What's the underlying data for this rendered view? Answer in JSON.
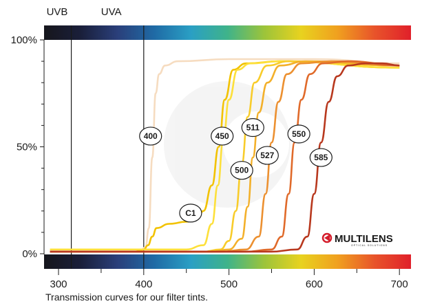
{
  "chart_data": {
    "type": "line",
    "xlim": [
      290,
      700
    ],
    "ylim": [
      0,
      100
    ],
    "x_ticks": [
      300,
      400,
      500,
      600,
      700
    ],
    "y_ticks": [
      {
        "value": 100,
        "label": "100%"
      },
      {
        "value": 50,
        "label": "50%"
      },
      {
        "value": 0,
        "label": "0%"
      }
    ],
    "bands": [
      {
        "label": "UVB",
        "x": 315
      },
      {
        "label": "UVA",
        "x": 400
      }
    ],
    "spectrum_colors": [
      "#16161c",
      "#1a1f3a",
      "#2a3f7a",
      "#1f6aa5",
      "#2a9fc4",
      "#3fb38a",
      "#9cc43a",
      "#e8d21f",
      "#f0a01f",
      "#e8542a",
      "#e0202a"
    ],
    "series": [
      {
        "name": "400",
        "color": "#f6dcc0",
        "label_at": [
          408,
          55
        ],
        "points": [
          [
            290,
            1
          ],
          [
            395,
            1
          ],
          [
            402,
            3
          ],
          [
            406,
            12
          ],
          [
            410,
            45
          ],
          [
            414,
            75
          ],
          [
            418,
            84
          ],
          [
            425,
            88
          ],
          [
            440,
            90
          ],
          [
            500,
            91
          ],
          [
            600,
            91
          ],
          [
            700,
            89
          ]
        ]
      },
      {
        "name": "C1",
        "color": "#f2c200",
        "label_at": [
          455,
          19
        ],
        "points": [
          [
            290,
            1
          ],
          [
            390,
            1
          ],
          [
            400,
            2
          ],
          [
            405,
            4
          ],
          [
            410,
            8
          ],
          [
            415,
            12
          ],
          [
            430,
            14
          ],
          [
            450,
            15
          ],
          [
            462,
            16
          ],
          [
            470,
            20
          ],
          [
            480,
            32
          ],
          [
            488,
            50
          ],
          [
            495,
            72
          ],
          [
            505,
            86
          ],
          [
            520,
            89
          ],
          [
            560,
            90
          ],
          [
            700,
            87
          ]
        ]
      },
      {
        "name": "450",
        "color": "#fde03a",
        "label_at": [
          492,
          55
        ],
        "points": [
          [
            290,
            2
          ],
          [
            420,
            2
          ],
          [
            450,
            2
          ],
          [
            470,
            4
          ],
          [
            480,
            14
          ],
          [
            487,
            32
          ],
          [
            493,
            52
          ],
          [
            500,
            72
          ],
          [
            510,
            86
          ],
          [
            525,
            89
          ],
          [
            560,
            90
          ],
          [
            700,
            87
          ]
        ]
      },
      {
        "name": "500",
        "color": "#f8cc2a",
        "label_at": [
          515,
          39
        ],
        "points": [
          [
            290,
            1
          ],
          [
            470,
            1
          ],
          [
            490,
            2
          ],
          [
            500,
            6
          ],
          [
            508,
            20
          ],
          [
            515,
            42
          ],
          [
            522,
            64
          ],
          [
            530,
            80
          ],
          [
            545,
            88
          ],
          [
            570,
            90
          ],
          [
            700,
            88
          ]
        ]
      },
      {
        "name": "511",
        "color": "#f3b02a",
        "label_at": [
          528,
          59
        ],
        "points": [
          [
            290,
            1
          ],
          [
            480,
            1
          ],
          [
            500,
            2
          ],
          [
            515,
            7
          ],
          [
            522,
            22
          ],
          [
            528,
            45
          ],
          [
            535,
            66
          ],
          [
            545,
            80
          ],
          [
            560,
            88
          ],
          [
            590,
            90
          ],
          [
            700,
            88
          ]
        ]
      },
      {
        "name": "527",
        "color": "#ec9030",
        "label_at": [
          545,
          46
        ],
        "points": [
          [
            290,
            1
          ],
          [
            490,
            1
          ],
          [
            520,
            2
          ],
          [
            535,
            8
          ],
          [
            543,
            28
          ],
          [
            550,
            52
          ],
          [
            558,
            71
          ],
          [
            568,
            84
          ],
          [
            585,
            89
          ],
          [
            620,
            90
          ],
          [
            700,
            88
          ]
        ]
      },
      {
        "name": "550",
        "color": "#e06a2a",
        "label_at": [
          582,
          56
        ],
        "points": [
          [
            290,
            1
          ],
          [
            520,
            1
          ],
          [
            550,
            2
          ],
          [
            562,
            8
          ],
          [
            570,
            28
          ],
          [
            577,
            52
          ],
          [
            585,
            72
          ],
          [
            595,
            84
          ],
          [
            610,
            89
          ],
          [
            640,
            90
          ],
          [
            700,
            88
          ]
        ]
      },
      {
        "name": "585",
        "color": "#b8381e",
        "label_at": [
          608,
          45
        ],
        "points": [
          [
            290,
            1
          ],
          [
            550,
            1
          ],
          [
            580,
            2
          ],
          [
            592,
            8
          ],
          [
            600,
            28
          ],
          [
            608,
            52
          ],
          [
            617,
            71
          ],
          [
            627,
            83
          ],
          [
            640,
            88
          ],
          [
            660,
            89
          ],
          [
            680,
            89
          ],
          [
            700,
            88
          ]
        ]
      }
    ]
  },
  "logo": {
    "brand": "MULTILENS",
    "tagline": "OPTICAL SOLUTIONS"
  },
  "caption": "Transmission curves for our filter tints."
}
